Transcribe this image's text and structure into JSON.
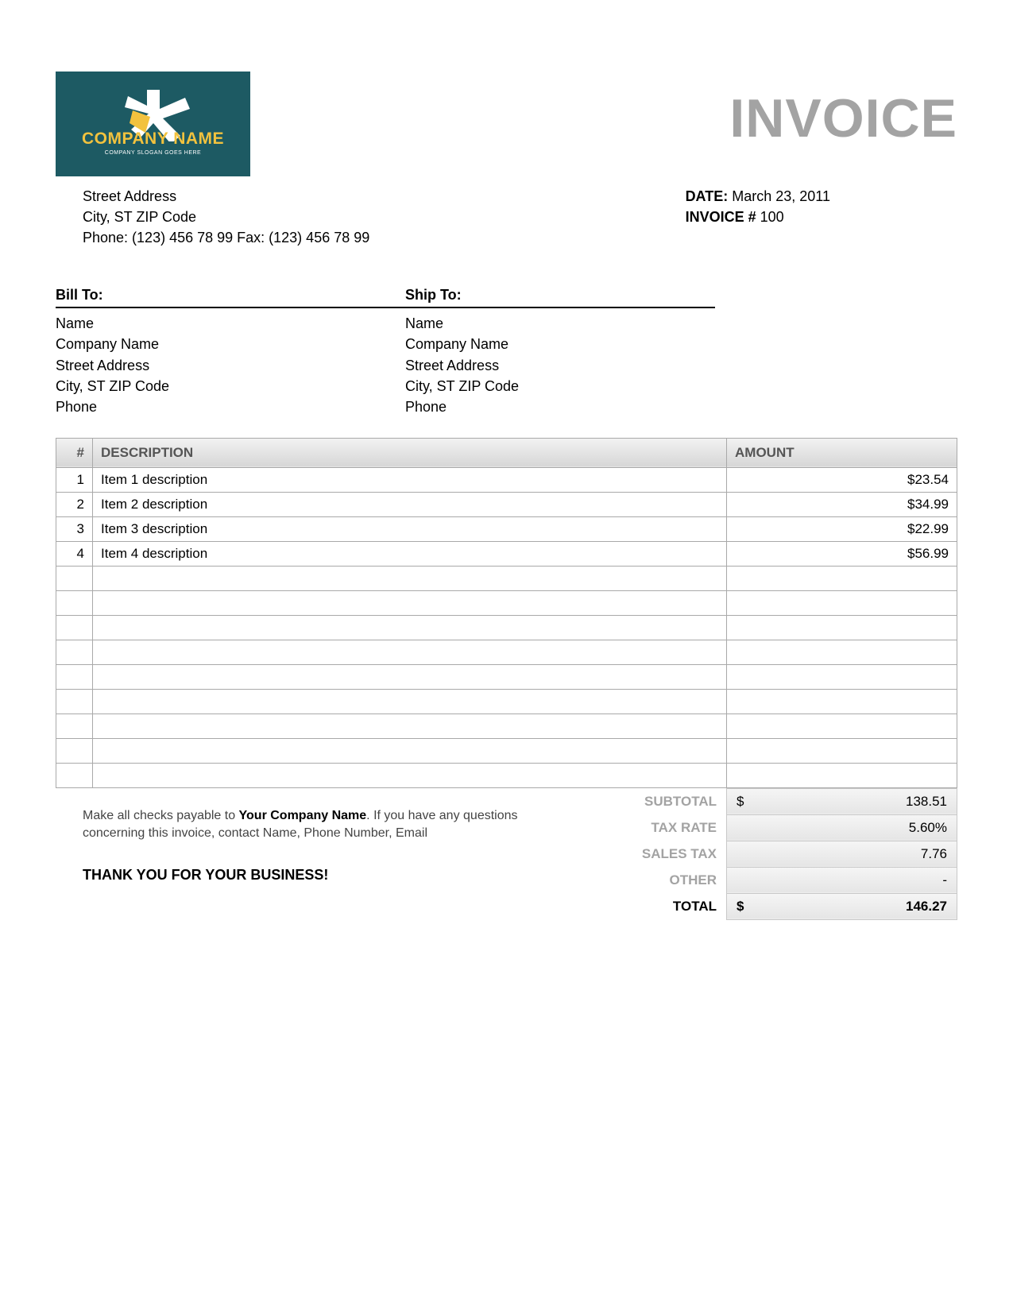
{
  "logo": {
    "background_color": "#1d5a63",
    "text_main": "COMPANY NAME",
    "text_main_color": "#f2c23e",
    "text_sub": "COMPANY SLOGAN GOES HERE",
    "text_sub_color": "#ffffff",
    "star_color_primary": "#ffffff",
    "star_color_accent": "#f2c23e"
  },
  "title": "INVOICE",
  "title_color": "#a3a3a3",
  "company": {
    "street": "Street Address",
    "city_line": "City, ST  ZIP Code",
    "phone_line": "Phone: (123) 456 78 99   Fax: (123) 456 78 99"
  },
  "meta": {
    "date_label": "DATE:",
    "date_value": "March 23, 2011",
    "invoice_label": "INVOICE #",
    "invoice_value": "100"
  },
  "bill_to": {
    "heading": "Bill To:",
    "lines": [
      "Name",
      "Company Name",
      "Street Address",
      "City, ST  ZIP Code",
      "Phone"
    ]
  },
  "ship_to": {
    "heading": "Ship To:",
    "lines": [
      "Name",
      "Company Name",
      "Street Address",
      "City, ST  ZIP Code",
      "Phone"
    ]
  },
  "table": {
    "headers": {
      "num": "#",
      "desc": "DESCRIPTION",
      "amount": "AMOUNT"
    },
    "header_bg_top": "#f2f2f2",
    "header_bg_bottom": "#d6d6d6",
    "border_color": "#a9a9a9",
    "row_count": 13,
    "rows": [
      {
        "num": "1",
        "desc": "Item 1 description",
        "amount": "$23.54"
      },
      {
        "num": "2",
        "desc": "Item 2 description",
        "amount": "$34.99"
      },
      {
        "num": "3",
        "desc": "Item 3 description",
        "amount": "$22.99"
      },
      {
        "num": "4",
        "desc": "Item 4 description",
        "amount": "$56.99"
      }
    ]
  },
  "totals": {
    "subtotal": {
      "label": "SUBTOTAL",
      "symbol": "$",
      "value": "138.51"
    },
    "tax_rate": {
      "label": "TAX RATE",
      "symbol": "",
      "value": "5.60%"
    },
    "sales_tax": {
      "label": "SALES TAX",
      "symbol": "",
      "value": "7.76"
    },
    "other": {
      "label": "OTHER",
      "symbol": "",
      "value": "-"
    },
    "total": {
      "label": "TOTAL",
      "symbol": "$",
      "value": "146.27"
    },
    "value_bg_top": "#f5f5f5",
    "value_bg_bottom": "#e5e5e5"
  },
  "footer": {
    "note_prefix": "Make all checks payable to ",
    "note_bold": "Your Company Name",
    "note_suffix": ". If you have any questions concerning this invoice, contact Name, Phone Number, Email",
    "thanks": "THANK YOU FOR YOUR BUSINESS!"
  }
}
